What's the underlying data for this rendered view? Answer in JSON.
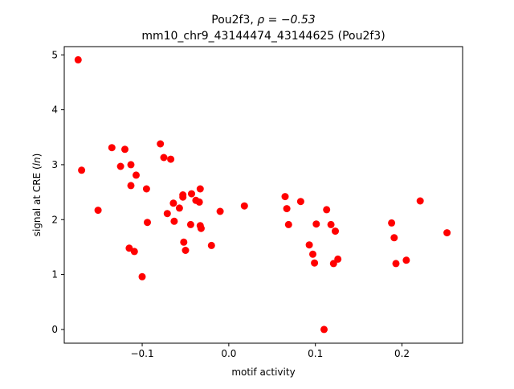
{
  "chart_data": {
    "type": "scatter",
    "title_line1_prefix": "Pou2f3, ",
    "title_line1_math": "ρ = −0.53",
    "title_line2": "mm10_chr9_43144474_43144625 (Pou2f3)",
    "xlabel": "motif activity",
    "ylabel_prefix": "signal at CRE (",
    "ylabel_math": "ln",
    "ylabel_suffix": ")",
    "xlim": [
      -0.19,
      0.27
    ],
    "ylim": [
      -0.25,
      5.15
    ],
    "xticks": [
      -0.1,
      0.0,
      0.1,
      0.2
    ],
    "xtick_labels": [
      "−0.1",
      "0.0",
      "0.1",
      "0.2"
    ],
    "yticks": [
      0,
      1,
      2,
      3,
      4,
      5
    ],
    "ytick_labels": [
      "0",
      "1",
      "2",
      "3",
      "4",
      "5"
    ],
    "point_color": "#ff0000",
    "grid": false,
    "points": [
      {
        "x": -0.174,
        "y": 4.91
      },
      {
        "x": -0.17,
        "y": 2.9
      },
      {
        "x": -0.151,
        "y": 2.17
      },
      {
        "x": -0.135,
        "y": 3.31
      },
      {
        "x": -0.125,
        "y": 2.97
      },
      {
        "x": -0.12,
        "y": 3.28
      },
      {
        "x": -0.115,
        "y": 1.48
      },
      {
        "x": -0.113,
        "y": 3.0
      },
      {
        "x": -0.113,
        "y": 2.62
      },
      {
        "x": -0.109,
        "y": 1.42
      },
      {
        "x": -0.107,
        "y": 2.81
      },
      {
        "x": -0.1,
        "y": 0.96
      },
      {
        "x": -0.095,
        "y": 2.56
      },
      {
        "x": -0.094,
        "y": 1.95
      },
      {
        "x": -0.079,
        "y": 3.38
      },
      {
        "x": -0.075,
        "y": 3.13
      },
      {
        "x": -0.071,
        "y": 2.11
      },
      {
        "x": -0.067,
        "y": 3.1
      },
      {
        "x": -0.064,
        "y": 2.3
      },
      {
        "x": -0.063,
        "y": 1.97
      },
      {
        "x": -0.057,
        "y": 2.21
      },
      {
        "x": -0.053,
        "y": 2.45
      },
      {
        "x": -0.053,
        "y": 2.41
      },
      {
        "x": -0.052,
        "y": 1.59
      },
      {
        "x": -0.05,
        "y": 1.44
      },
      {
        "x": -0.044,
        "y": 1.91
      },
      {
        "x": -0.043,
        "y": 2.47
      },
      {
        "x": -0.038,
        "y": 2.35
      },
      {
        "x": -0.034,
        "y": 2.32
      },
      {
        "x": -0.033,
        "y": 2.56
      },
      {
        "x": -0.033,
        "y": 1.89
      },
      {
        "x": -0.032,
        "y": 1.84
      },
      {
        "x": -0.02,
        "y": 1.53
      },
      {
        "x": -0.01,
        "y": 2.15
      },
      {
        "x": 0.018,
        "y": 2.25
      },
      {
        "x": 0.065,
        "y": 2.42
      },
      {
        "x": 0.067,
        "y": 2.2
      },
      {
        "x": 0.069,
        "y": 1.91
      },
      {
        "x": 0.083,
        "y": 2.33
      },
      {
        "x": 0.093,
        "y": 1.54
      },
      {
        "x": 0.097,
        "y": 1.37
      },
      {
        "x": 0.099,
        "y": 1.21
      },
      {
        "x": 0.101,
        "y": 1.92
      },
      {
        "x": 0.11,
        "y": 0.0
      },
      {
        "x": 0.113,
        "y": 2.18
      },
      {
        "x": 0.118,
        "y": 1.91
      },
      {
        "x": 0.121,
        "y": 1.2
      },
      {
        "x": 0.123,
        "y": 1.79
      },
      {
        "x": 0.126,
        "y": 1.28
      },
      {
        "x": 0.188,
        "y": 1.94
      },
      {
        "x": 0.191,
        "y": 1.67
      },
      {
        "x": 0.193,
        "y": 1.2
      },
      {
        "x": 0.205,
        "y": 1.26
      },
      {
        "x": 0.221,
        "y": 2.34
      },
      {
        "x": 0.252,
        "y": 1.76
      }
    ]
  }
}
